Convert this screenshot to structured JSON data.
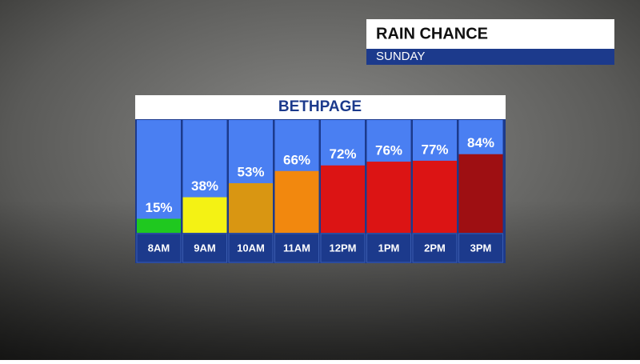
{
  "chart_data": {
    "type": "bar",
    "header": "RAIN CHANCE",
    "subheader": "SUNDAY",
    "title": "BETHPAGE",
    "categories": [
      "8AM",
      "9AM",
      "10AM",
      "11AM",
      "12PM",
      "1PM",
      "2PM",
      "3PM"
    ],
    "values": [
      15,
      38,
      53,
      66,
      72,
      76,
      77,
      84
    ],
    "value_labels": [
      "15%",
      "38%",
      "53%",
      "66%",
      "72%",
      "76%",
      "77%",
      "84%"
    ],
    "colors": [
      "#1fc81f",
      "#f4f214",
      "#d99612",
      "#f2880e",
      "#dc1414",
      "#dc1414",
      "#dc1414",
      "#9e0f12"
    ],
    "ylim": [
      0,
      100
    ]
  }
}
